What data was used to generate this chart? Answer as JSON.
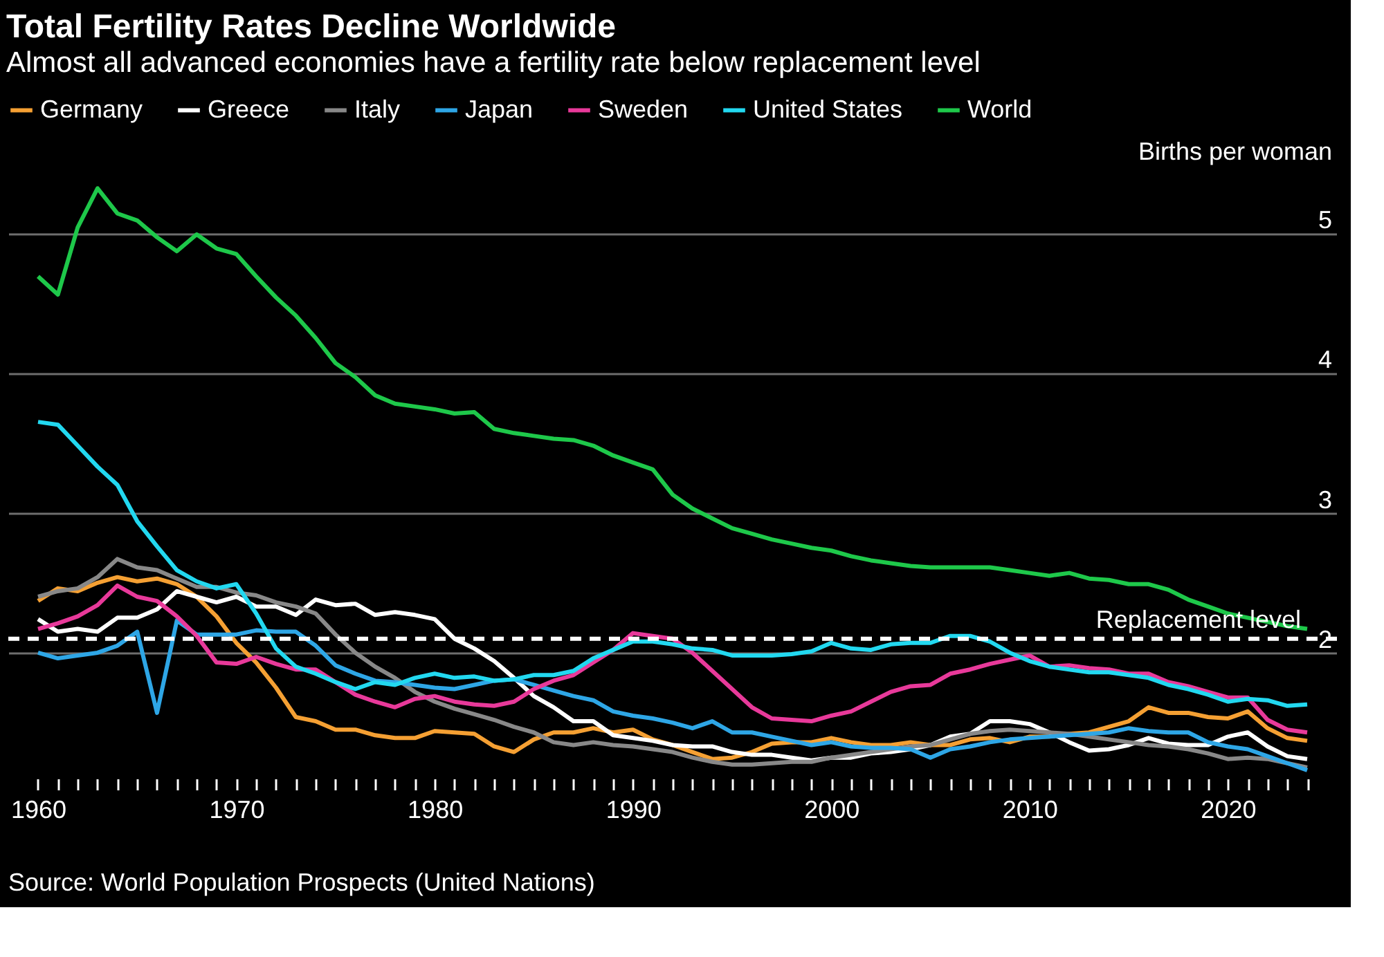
{
  "chart_data": {
    "type": "line",
    "title": "Total Fertility Rates Decline Worldwide",
    "subtitle": "Almost all advanced economies have a fertility rate below replacement level",
    "ylabel": "Births per woman",
    "x": [
      1960,
      1961,
      1962,
      1963,
      1964,
      1965,
      1966,
      1967,
      1968,
      1969,
      1970,
      1971,
      1972,
      1973,
      1974,
      1975,
      1976,
      1977,
      1978,
      1979,
      1980,
      1981,
      1982,
      1983,
      1984,
      1985,
      1986,
      1987,
      1988,
      1989,
      1990,
      1991,
      1992,
      1993,
      1994,
      1995,
      1996,
      1997,
      1998,
      1999,
      2000,
      2001,
      2002,
      2003,
      2004,
      2005,
      2006,
      2007,
      2008,
      2009,
      2010,
      2011,
      2012,
      2013,
      2014,
      2015,
      2016,
      2017,
      2018,
      2019,
      2020,
      2021,
      2022,
      2023,
      2024
    ],
    "series": [
      {
        "name": "Germany",
        "color": "#f5a033",
        "values": [
          2.37,
          2.46,
          2.44,
          2.5,
          2.54,
          2.51,
          2.53,
          2.49,
          2.4,
          2.26,
          2.07,
          1.93,
          1.75,
          1.54,
          1.51,
          1.45,
          1.45,
          1.41,
          1.39,
          1.39,
          1.44,
          1.43,
          1.42,
          1.33,
          1.29,
          1.38,
          1.43,
          1.43,
          1.46,
          1.43,
          1.45,
          1.38,
          1.34,
          1.29,
          1.24,
          1.25,
          1.29,
          1.35,
          1.36,
          1.36,
          1.39,
          1.36,
          1.34,
          1.34,
          1.36,
          1.34,
          1.34,
          1.38,
          1.39,
          1.36,
          1.4,
          1.4,
          1.42,
          1.43,
          1.47,
          1.51,
          1.61,
          1.57,
          1.57,
          1.54,
          1.53,
          1.58,
          1.46,
          1.39,
          1.37
        ]
      },
      {
        "name": "Greece",
        "color": "#ffffff",
        "values": [
          2.24,
          2.15,
          2.17,
          2.15,
          2.25,
          2.25,
          2.31,
          2.44,
          2.4,
          2.36,
          2.4,
          2.33,
          2.33,
          2.27,
          2.38,
          2.34,
          2.35,
          2.27,
          2.29,
          2.27,
          2.24,
          2.1,
          2.03,
          1.94,
          1.82,
          1.69,
          1.61,
          1.51,
          1.51,
          1.41,
          1.39,
          1.37,
          1.34,
          1.33,
          1.33,
          1.29,
          1.27,
          1.27,
          1.25,
          1.23,
          1.25,
          1.25,
          1.28,
          1.29,
          1.31,
          1.34,
          1.4,
          1.42,
          1.51,
          1.51,
          1.49,
          1.43,
          1.36,
          1.3,
          1.31,
          1.34,
          1.39,
          1.35,
          1.34,
          1.34,
          1.4,
          1.43,
          1.33,
          1.26,
          1.24
        ]
      },
      {
        "name": "Italy",
        "color": "#888888",
        "values": [
          2.4,
          2.44,
          2.46,
          2.54,
          2.67,
          2.61,
          2.59,
          2.53,
          2.47,
          2.47,
          2.43,
          2.41,
          2.36,
          2.33,
          2.28,
          2.13,
          2.0,
          1.9,
          1.82,
          1.72,
          1.65,
          1.6,
          1.56,
          1.52,
          1.47,
          1.43,
          1.36,
          1.34,
          1.36,
          1.34,
          1.33,
          1.31,
          1.29,
          1.25,
          1.22,
          1.2,
          1.2,
          1.21,
          1.22,
          1.22,
          1.25,
          1.27,
          1.29,
          1.31,
          1.33,
          1.34,
          1.38,
          1.42,
          1.44,
          1.45,
          1.44,
          1.43,
          1.42,
          1.4,
          1.38,
          1.36,
          1.34,
          1.33,
          1.31,
          1.28,
          1.24,
          1.25,
          1.24,
          1.21,
          1.18
        ]
      },
      {
        "name": "Japan",
        "color": "#2ea6e6",
        "values": [
          2.0,
          1.96,
          1.98,
          2.0,
          2.05,
          2.15,
          1.57,
          2.23,
          2.13,
          2.13,
          2.13,
          2.16,
          2.15,
          2.15,
          2.05,
          1.91,
          1.85,
          1.8,
          1.79,
          1.77,
          1.75,
          1.74,
          1.77,
          1.8,
          1.81,
          1.77,
          1.73,
          1.69,
          1.66,
          1.58,
          1.55,
          1.53,
          1.5,
          1.46,
          1.51,
          1.43,
          1.43,
          1.4,
          1.37,
          1.34,
          1.36,
          1.33,
          1.32,
          1.32,
          1.31,
          1.25,
          1.31,
          1.33,
          1.36,
          1.38,
          1.39,
          1.4,
          1.41,
          1.42,
          1.43,
          1.46,
          1.44,
          1.43,
          1.43,
          1.36,
          1.33,
          1.31,
          1.26,
          1.21,
          1.16
        ]
      },
      {
        "name": "Sweden",
        "color": "#e8399a",
        "values": [
          2.17,
          2.21,
          2.26,
          2.34,
          2.48,
          2.4,
          2.37,
          2.26,
          2.12,
          1.93,
          1.92,
          1.97,
          1.92,
          1.88,
          1.88,
          1.79,
          1.7,
          1.65,
          1.61,
          1.67,
          1.69,
          1.65,
          1.63,
          1.62,
          1.65,
          1.74,
          1.8,
          1.84,
          1.93,
          2.02,
          2.14,
          2.12,
          2.1,
          2.0,
          1.87,
          1.74,
          1.61,
          1.53,
          1.52,
          1.51,
          1.55,
          1.58,
          1.65,
          1.72,
          1.76,
          1.77,
          1.85,
          1.88,
          1.92,
          1.95,
          1.98,
          1.9,
          1.91,
          1.89,
          1.88,
          1.85,
          1.85,
          1.79,
          1.76,
          1.72,
          1.68,
          1.68,
          1.52,
          1.45,
          1.43
        ]
      },
      {
        "name": "United States",
        "color": "#22d8f0",
        "values": [
          3.65,
          3.63,
          3.48,
          3.33,
          3.2,
          2.94,
          2.76,
          2.59,
          2.51,
          2.46,
          2.49,
          2.28,
          2.03,
          1.9,
          1.85,
          1.79,
          1.74,
          1.79,
          1.77,
          1.82,
          1.85,
          1.82,
          1.83,
          1.8,
          1.81,
          1.84,
          1.84,
          1.87,
          1.96,
          2.02,
          2.08,
          2.08,
          2.06,
          2.03,
          2.02,
          1.98,
          1.98,
          1.98,
          1.99,
          2.01,
          2.07,
          2.03,
          2.02,
          2.06,
          2.07,
          2.07,
          2.12,
          2.12,
          2.08,
          2.0,
          1.94,
          1.9,
          1.88,
          1.86,
          1.86,
          1.84,
          1.82,
          1.77,
          1.74,
          1.7,
          1.65,
          1.67,
          1.66,
          1.62,
          1.63
        ]
      },
      {
        "name": "World",
        "color": "#1ec84a",
        "values": [
          4.69,
          4.56,
          5.04,
          5.32,
          5.14,
          5.09,
          4.97,
          4.87,
          4.99,
          4.89,
          4.85,
          4.69,
          4.54,
          4.41,
          4.25,
          4.07,
          3.97,
          3.84,
          3.78,
          3.76,
          3.74,
          3.71,
          3.72,
          3.6,
          3.57,
          3.55,
          3.53,
          3.52,
          3.48,
          3.41,
          3.36,
          3.31,
          3.13,
          3.03,
          2.96,
          2.89,
          2.85,
          2.81,
          2.78,
          2.75,
          2.73,
          2.69,
          2.66,
          2.64,
          2.62,
          2.61,
          2.61,
          2.61,
          2.61,
          2.59,
          2.57,
          2.55,
          2.57,
          2.53,
          2.52,
          2.49,
          2.49,
          2.45,
          2.38,
          2.33,
          2.28,
          2.25,
          2.22,
          2.19,
          2.17
        ]
      }
    ],
    "xlim": [
      1958.5,
      2025.5
    ],
    "xticks": [
      1960,
      {
        "value": 1961,
        "label": null
      },
      {
        "value": 1962,
        "label": null
      },
      {
        "value": 1963,
        "label": null
      },
      {
        "value": 1964,
        "label": null
      },
      {
        "value": 1965,
        "label": null
      },
      {
        "value": 1966,
        "label": null
      },
      {
        "value": 1967,
        "label": null
      },
      {
        "value": 1968,
        "label": null
      },
      {
        "value": 1969,
        "label": null
      },
      1970,
      {
        "value": 1971,
        "label": null
      },
      {
        "value": 1972,
        "label": null
      },
      {
        "value": 1973,
        "label": null
      },
      {
        "value": 1974,
        "label": null
      },
      {
        "value": 1975,
        "label": null
      },
      {
        "value": 1976,
        "label": null
      },
      {
        "value": 1977,
        "label": null
      },
      {
        "value": 1978,
        "label": null
      },
      {
        "value": 1979,
        "label": null
      },
      1980,
      {
        "value": 1981,
        "label": null
      },
      {
        "value": 1982,
        "label": null
      },
      {
        "value": 1983,
        "label": null
      },
      {
        "value": 1984,
        "label": null
      },
      {
        "value": 1985,
        "label": null
      },
      {
        "value": 1986,
        "label": null
      },
      {
        "value": 1987,
        "label": null
      },
      {
        "value": 1988,
        "label": null
      },
      {
        "value": 1989,
        "label": null
      },
      1990,
      {
        "value": 1991,
        "label": null
      },
      {
        "value": 1992,
        "label": null
      },
      {
        "value": 1993,
        "label": null
      },
      {
        "value": 1994,
        "label": null
      },
      {
        "value": 1995,
        "label": null
      },
      {
        "value": 1996,
        "label": null
      },
      {
        "value": 1997,
        "label": null
      },
      {
        "value": 1998,
        "label": null
      },
      {
        "value": 1999,
        "label": null
      },
      2000,
      {
        "value": 2001,
        "label": null
      },
      {
        "value": 2002,
        "label": null
      },
      {
        "value": 2003,
        "label": null
      },
      {
        "value": 2004,
        "label": null
      },
      {
        "value": 2005,
        "label": null
      },
      {
        "value": 2006,
        "label": null
      },
      {
        "value": 2007,
        "label": null
      },
      {
        "value": 2008,
        "label": null
      },
      {
        "value": 2009,
        "label": null
      },
      2010,
      {
        "value": 2011,
        "label": null
      },
      {
        "value": 2012,
        "label": null
      },
      {
        "value": 2013,
        "label": null
      },
      {
        "value": 2014,
        "label": null
      },
      {
        "value": 2015,
        "label": null
      },
      {
        "value": 2016,
        "label": null
      },
      {
        "value": 2017,
        "label": null
      },
      {
        "value": 2018,
        "label": null
      },
      {
        "value": 2019,
        "label": null
      },
      2020,
      {
        "value": 2021,
        "label": null
      },
      {
        "value": 2022,
        "label": null
      },
      {
        "value": 2023,
        "label": null
      },
      {
        "value": 2024,
        "label": null
      }
    ],
    "ylim": [
      1.1,
      5.45
    ],
    "yticks": [
      2,
      3,
      4,
      5
    ],
    "grid": "y",
    "legend": "top left",
    "line_style": "solid",
    "ref_lines": [
      {
        "axis": "y",
        "value": 2.1,
        "label": "Replacement level",
        "color": "#ffffff",
        "line_style": "dashed"
      }
    ],
    "annotations": [
      "Source: World Population Prospects (United Nations)"
    ]
  }
}
